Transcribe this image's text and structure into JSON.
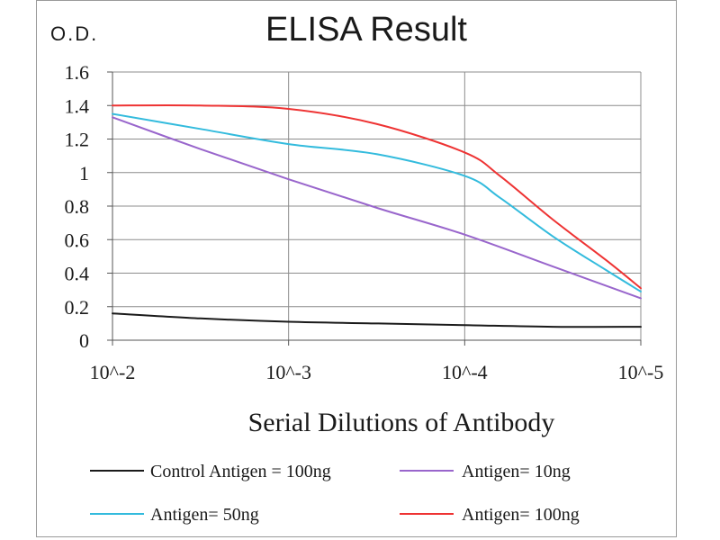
{
  "chart_data": {
    "type": "line",
    "title": "ELISA Result",
    "ylabel": "O.D.",
    "xlabel": "Serial Dilutions  of Antibody",
    "categories": [
      "10^-2",
      "10^-3",
      "10^-4",
      "10^-5"
    ],
    "x": [
      -2,
      -3,
      -4,
      -5
    ],
    "ylim": [
      0,
      1.6
    ],
    "yticks": [
      "0",
      "0.2",
      "0.4",
      "0.6",
      "0.8",
      "1",
      "1.2",
      "1.4",
      "1.6"
    ],
    "grid": true,
    "legend_position": "bottom",
    "series": [
      {
        "name": "Control Antigen = 100ng",
        "color": "#1a1a1a",
        "x": [
          -2,
          -2.5,
          -3,
          -3.5,
          -4,
          -4.5,
          -5
        ],
        "values": [
          0.16,
          0.13,
          0.11,
          0.1,
          0.09,
          0.08,
          0.08
        ]
      },
      {
        "name": "Antigen= 10ng",
        "color": "#9966cc",
        "x": [
          -2,
          -2.5,
          -3,
          -3.5,
          -4,
          -4.5,
          -5
        ],
        "values": [
          1.33,
          1.14,
          0.96,
          0.79,
          0.63,
          0.44,
          0.25
        ]
      },
      {
        "name": "Antigen= 50ng",
        "color": "#33bbdd",
        "x": [
          -2,
          -2.5,
          -3,
          -3.5,
          -4,
          -4.2,
          -4.5,
          -4.8,
          -5
        ],
        "values": [
          1.35,
          1.26,
          1.17,
          1.11,
          0.98,
          0.85,
          0.62,
          0.42,
          0.29
        ]
      },
      {
        "name": "Antigen= 100ng",
        "color": "#ee3333",
        "x": [
          -2,
          -2.5,
          -3,
          -3.5,
          -4,
          -4.2,
          -4.5,
          -4.8,
          -5
        ],
        "values": [
          1.4,
          1.4,
          1.38,
          1.29,
          1.12,
          0.98,
          0.72,
          0.48,
          0.31
        ]
      }
    ]
  }
}
